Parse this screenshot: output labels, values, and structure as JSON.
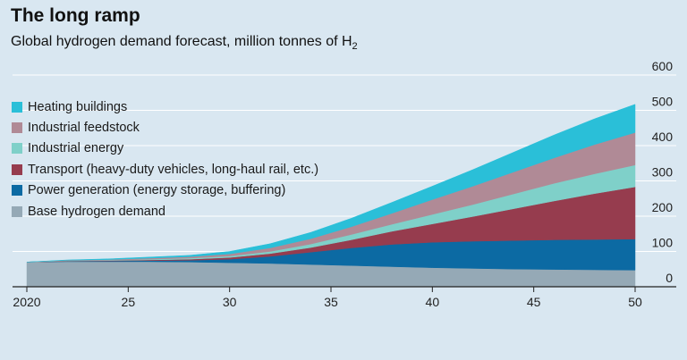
{
  "header": {
    "title": "The long ramp",
    "subtitle_main": "Global hydrogen demand forecast, million tonnes of H",
    "subtitle_sub": "2"
  },
  "chart_data": {
    "type": "area",
    "stacked": true,
    "x": [
      2020,
      2022,
      2024,
      2026,
      2028,
      2030,
      2032,
      2034,
      2036,
      2038,
      2040,
      2042,
      2044,
      2046,
      2048,
      2050
    ],
    "x_tick_values": [
      2020,
      2025,
      2030,
      2035,
      2040,
      2045,
      2050
    ],
    "x_tick_labels": [
      "2020",
      "25",
      "30",
      "35",
      "40",
      "45",
      "50"
    ],
    "ylim": [
      0,
      600
    ],
    "y_ticks": [
      0,
      100,
      200,
      300,
      400,
      500,
      600
    ],
    "y_axis_side": "right",
    "grid": true,
    "legend_position": "top-left",
    "series": [
      {
        "name": "Base hydrogen demand",
        "color": "#95a9b6",
        "values": [
          70,
          71,
          71,
          71,
          70,
          68,
          66,
          63,
          60,
          57,
          54,
          52,
          50,
          49,
          48,
          47
        ]
      },
      {
        "name": "Power generation (energy storage, buffering)",
        "color": "#0c6aa3",
        "values": [
          0,
          1,
          2,
          3,
          5,
          10,
          20,
          35,
          50,
          63,
          72,
          77,
          81,
          84,
          86,
          88
        ]
      },
      {
        "name": "Transport (heavy-duty vehicles, long-haul rail, etc.)",
        "color": "#963c4e",
        "values": [
          0,
          1,
          1,
          2,
          3,
          5,
          8,
          13,
          23,
          37,
          52,
          70,
          90,
          110,
          130,
          148
        ]
      },
      {
        "name": "Industrial energy",
        "color": "#7fd0c9",
        "values": [
          0,
          1,
          1,
          2,
          3,
          4,
          6,
          10,
          15,
          20,
          27,
          34,
          42,
          50,
          56,
          62
        ]
      },
      {
        "name": "Industrial feedstock",
        "color": "#b08a96",
        "values": [
          0,
          1,
          2,
          3,
          4,
          6,
          10,
          15,
          22,
          31,
          42,
          52,
          62,
          72,
          83,
          92
        ]
      },
      {
        "name": "Heating buildings",
        "color": "#2abfd8",
        "values": [
          0,
          1,
          2,
          3,
          4,
          7,
          12,
          18,
          24,
          31,
          38,
          47,
          56,
          65,
          73,
          80
        ]
      }
    ],
    "legend_order": [
      "Heating buildings",
      "Industrial feedstock",
      "Industrial energy",
      "Transport (heavy-duty vehicles, long-haul rail, etc.)",
      "Power generation (energy storage, buffering)",
      "Base hydrogen demand"
    ]
  }
}
